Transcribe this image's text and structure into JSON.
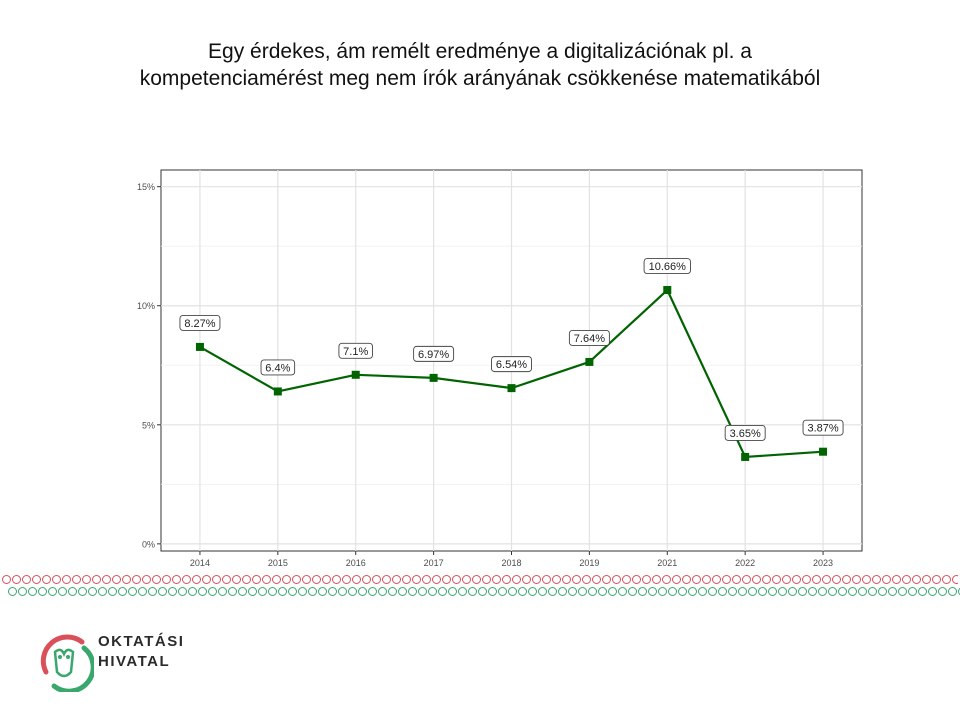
{
  "slide": {
    "title_line1": "Egy érdekes, ám remélt eredménye a digitalizációnak pl. a",
    "title_line2": "kompetenciamérést meg nem írók arányának csökkenése matematikából"
  },
  "logo": {
    "line1": "OKTATÁSI",
    "line2": "HIVATAL",
    "colors": {
      "red": "#d9505a",
      "green": "#3aa76d"
    }
  },
  "chart_data": {
    "type": "line",
    "categories": [
      "2014",
      "2015",
      "2016",
      "2017",
      "2018",
      "2019",
      "2021",
      "2022",
      "2023"
    ],
    "values": [
      8.27,
      6.4,
      7.1,
      6.97,
      6.54,
      7.64,
      10.66,
      3.65,
      3.87
    ],
    "data_labels": [
      "8.27%",
      "6.4%",
      "7.1%",
      "6.97%",
      "6.54%",
      "7.64%",
      "10.66%",
      "3.65%",
      "3.87%"
    ],
    "y_ticks": [
      0,
      5,
      10,
      15
    ],
    "y_tick_labels": [
      "0%",
      "5%",
      "10%",
      "15%"
    ],
    "ylim": [
      -0.3,
      15.7
    ],
    "xlabel": "",
    "ylabel": "",
    "grid": true,
    "line_color": "#006400",
    "marker": "square"
  }
}
